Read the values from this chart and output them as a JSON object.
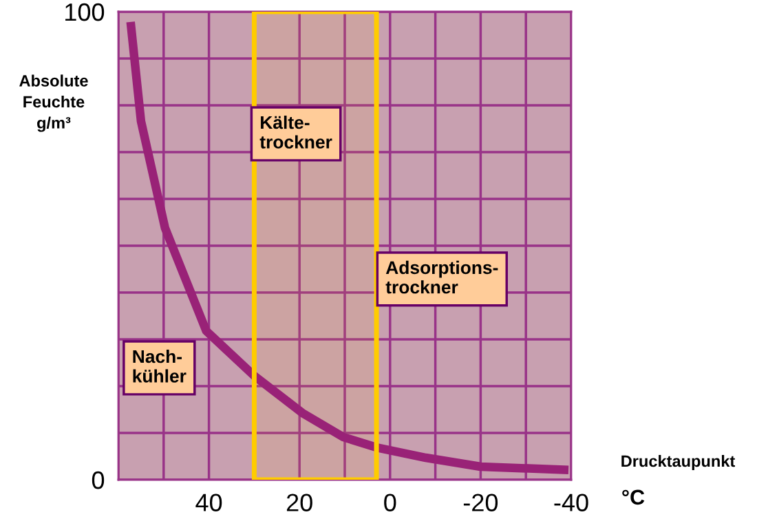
{
  "chart_data": {
    "type": "line",
    "xlabel": "Drucktaupunkt\n°C",
    "ylabel": "Absolute\nFeuchte\ng/m³",
    "x": [
      57.3,
      55,
      49.7,
      40.6,
      30,
      19.4,
      10.3,
      3,
      -7.9,
      -20,
      -39.4
    ],
    "series": [
      {
        "color": "#992277",
        "values": [
          97.8,
          76.6,
          53.8,
          31.8,
          22.2,
          14.3,
          9.1,
          6.9,
          4.7,
          2.8,
          2.1
        ]
      }
    ],
    "xlim": [
      60,
      -40
    ],
    "ylim": [
      0,
      100
    ],
    "xticks": [
      40,
      20,
      0,
      -20,
      -40
    ],
    "yticks": [
      0,
      100
    ],
    "grid": true,
    "marker": "none",
    "line_style": "solid",
    "bands": [
      {
        "axis": "x",
        "from": 30,
        "to": 3,
        "label": "Kälte-\ntrockner",
        "color": "#ffcc00"
      }
    ],
    "annotations": [
      "Nach-\nkühler",
      "Adsorptions-\ntrockner"
    ]
  }
}
